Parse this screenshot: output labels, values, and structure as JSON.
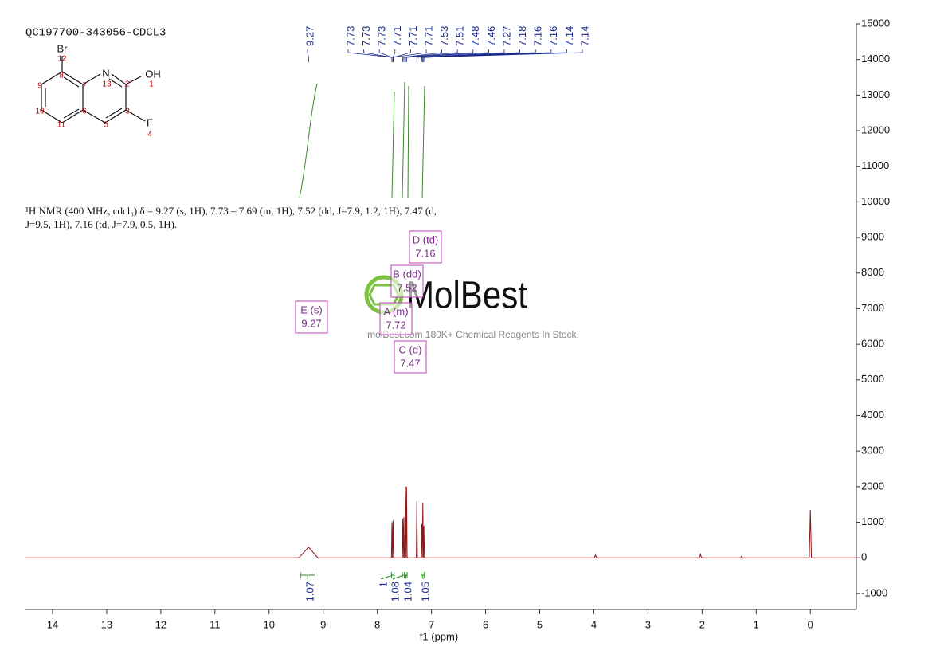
{
  "chart_data": {
    "type": "line",
    "title": "QC197700-343056-CDCL3",
    "xlabel": "f1 (ppm)",
    "x": [
      14.5,
      9.45,
      9.27,
      9.1,
      7.74,
      7.73,
      7.72,
      7.71,
      7.7,
      7.54,
      7.53,
      7.52,
      7.51,
      7.5,
      7.49,
      7.48,
      7.47,
      7.46,
      7.45,
      7.28,
      7.27,
      7.26,
      7.19,
      7.18,
      7.17,
      7.16,
      7.15,
      7.14,
      7.13,
      3.99,
      3.97,
      3.95,
      2.05,
      2.03,
      2.01,
      1.29,
      1.27,
      1.25,
      0.02,
      0,
      -0.02,
      -0.85
    ],
    "values": [
      0,
      0,
      300,
      0,
      0,
      1000,
      0,
      1050,
      0,
      0,
      1100,
      0,
      1150,
      0,
      0,
      2000,
      0,
      2000,
      0,
      0,
      1600,
      0,
      0,
      950,
      0,
      1550,
      0,
      900,
      0,
      0,
      80,
      0,
      0,
      100,
      0,
      0,
      50,
      0,
      0,
      1350,
      0,
      0
    ],
    "color": "#8b1a1a",
    "xlim": [
      14.5,
      -0.85
    ],
    "xticks": [
      14,
      13,
      12,
      11,
      10,
      9,
      8,
      7,
      6,
      5,
      4,
      3,
      2,
      1,
      0
    ],
    "ylim": [
      -1450,
      15000
    ],
    "yticks": [
      -1000,
      0,
      1000,
      2000,
      3000,
      4000,
      5000,
      6000,
      7000,
      8000,
      9000,
      10000,
      11000,
      12000,
      13000,
      14000,
      15000
    ],
    "peak_labels": [
      9.27,
      7.73,
      7.73,
      7.73,
      7.71,
      7.71,
      7.71,
      7.53,
      7.51,
      7.48,
      7.46,
      7.27,
      7.18,
      7.16,
      7.16,
      7.14,
      7.14
    ],
    "integrals": [
      {
        "value": 1.07,
        "range": [
          9.42,
          9.15
        ]
      },
      {
        "value": 1.0,
        "range": [
          7.74,
          7.69
        ]
      },
      {
        "value": 1.08,
        "range": [
          7.54,
          7.5
        ]
      },
      {
        "value": 1.04,
        "range": [
          7.49,
          7.45
        ]
      },
      {
        "value": 1.05,
        "range": [
          7.19,
          7.13
        ]
      }
    ],
    "multiplets": [
      {
        "name": "E (s)",
        "shift": 9.27
      },
      {
        "name": "A (m)",
        "shift": 7.72
      },
      {
        "name": "B (dd)",
        "shift": 7.52
      },
      {
        "name": "C (d)",
        "shift": 7.47
      },
      {
        "name": "D (td)",
        "shift": 7.16
      }
    ],
    "description": "¹H NMR (400 MHz, cdcl₃) δ = 9.27 (s, 1H), 7.73 – 7.69 (m, 1H), 7.52 (dd, J=7.9, 1.2, 1H), 7.47 (d, J=9.5, 1H), 7.16 (td, J=7.9, 0.5, 1H).",
    "molecule": {
      "atoms": [
        "Br",
        "12",
        "8",
        "N",
        "13",
        "7",
        "2",
        "OH",
        "1",
        "9",
        "10",
        "6",
        "3",
        "11",
        "5",
        "F",
        "4"
      ]
    },
    "watermark": {
      "logo": "MolBest",
      "tagline": "molBest.com 180K+ Chemical Reagents In Stock."
    }
  }
}
